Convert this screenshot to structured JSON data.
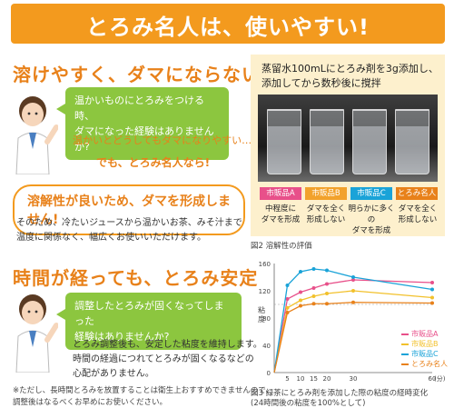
{
  "banner": {
    "title": "とろみ名人は、使いやすい!"
  },
  "section1": {
    "heading": "溶けやすく、ダマにならない",
    "bubble_lines": [
      "温かいものにとろみをつける時、",
      "ダマになった経験はありませんか?"
    ],
    "line2": "温かいとどうしてもダマになりやすい…",
    "burst": "でも、とろみ名人なら!",
    "callout": "溶解性が良いため、ダマを形成しません!",
    "body_lines": [
      "そのため、冷たいジュースから温かいお茶、みそ汁まで",
      "温度に関係なく、幅広くお使いいただけます。"
    ]
  },
  "photo": {
    "caption_lines": [
      "蒸留水100mLにとろみ剤を3g添加し、",
      "添加してから数秒後に撹拌"
    ],
    "tags": [
      {
        "label": "市販品A",
        "color": "#e8508a",
        "desc_lines": [
          "中程度に",
          "ダマを形成"
        ]
      },
      {
        "label": "市販品B",
        "color": "#f2a22c",
        "desc_lines": [
          "ダマを全く",
          "形成しない"
        ]
      },
      {
        "label": "市販品C",
        "color": "#1aa3d8",
        "desc_lines": [
          "明らかに多くの",
          "ダマを形成"
        ]
      },
      {
        "label": "とろみ名人",
        "color": "#e8811a",
        "desc_lines": [
          "ダマを全く",
          "形成しない"
        ]
      }
    ],
    "figure_caption": "図2 溶解性の評価"
  },
  "section2": {
    "heading": "時間が経っても、とろみ安定",
    "bubble_lines": [
      "調整したとろみが固くなってしまった",
      "経験はありませんか?"
    ],
    "body_lines": [
      "とろみ調整後も、安定した粘度を維持します。",
      "時間の経過につれてとろみが固くなるなどの",
      "心配がありません。"
    ],
    "note_lines": [
      "※ただし、長時間とろみを放置することは衛生上おすすめできませんので、",
      "調整後はなるべくお早めにお使いください。"
    ]
  },
  "chart_data": {
    "type": "line",
    "x": [
      0,
      5,
      10,
      15,
      20,
      30,
      60
    ],
    "x_unit": "(分)",
    "ylabel": "粘度",
    "ylim": [
      0,
      160
    ],
    "yticks": [
      0,
      40,
      80,
      120,
      160
    ],
    "reference_line": 100,
    "series": [
      {
        "name": "市販品A",
        "color": "#e8508a",
        "values": [
          0,
          108,
          118,
          124,
          130,
          136,
          132
        ]
      },
      {
        "name": "市販品B",
        "color": "#f2c12c",
        "values": [
          0,
          95,
          106,
          112,
          116,
          120,
          110
        ]
      },
      {
        "name": "市販品C",
        "color": "#1aa3d8",
        "values": [
          0,
          128,
          148,
          152,
          150,
          140,
          122
        ]
      },
      {
        "name": "とろみ名人",
        "color": "#e8811a",
        "values": [
          0,
          88,
          98,
          101,
          101,
          103,
          102
        ]
      }
    ],
    "figure_caption_lines": [
      "図3 緑茶にとろみ剤を添加した際の粘度の経時変化",
      "(24時間後の粘度を100%として)"
    ]
  }
}
